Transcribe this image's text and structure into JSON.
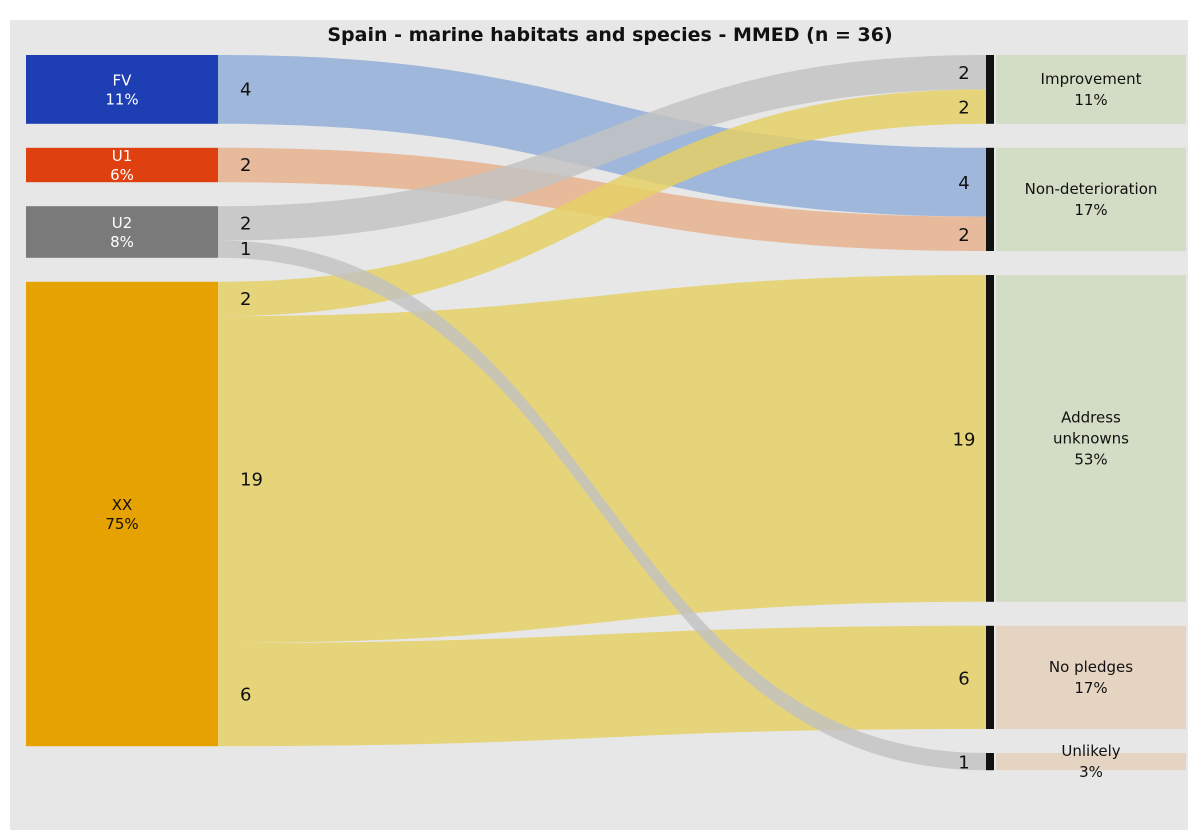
{
  "chart_data": {
    "type": "sankey",
    "title": "Spain - marine habitats and species - MMED (n = 36)",
    "total": 36,
    "sources": [
      {
        "id": "FV",
        "label": "FV",
        "pct": "11%",
        "value": 4,
        "color": "#1e3fb4",
        "text_color": "#ffffff"
      },
      {
        "id": "U1",
        "label": "U1",
        "pct": "6%",
        "value": 2,
        "color": "#de4010",
        "text_color": "#ffffff"
      },
      {
        "id": "U2",
        "label": "U2",
        "pct": "8%",
        "value": 3,
        "color": "#7a7a7a",
        "text_color": "#ffffff"
      },
      {
        "id": "XX",
        "label": "XX",
        "pct": "75%",
        "value": 27,
        "color": "#e6a200",
        "text_color": "#111111"
      }
    ],
    "targets": [
      {
        "id": "improvement",
        "label": [
          "Improvement"
        ],
        "pct": "11%",
        "value": 4,
        "color": "#d3dcc4"
      },
      {
        "id": "non-deterioration",
        "label": [
          "Non-deterioration"
        ],
        "pct": "17%",
        "value": 6,
        "color": "#d3dcc4"
      },
      {
        "id": "address-unknowns",
        "label": [
          "Address",
          "unknowns"
        ],
        "pct": "53%",
        "value": 19,
        "color": "#d3dcc4"
      },
      {
        "id": "no-pledges",
        "label": [
          "No pledges"
        ],
        "pct": "17%",
        "value": 6,
        "color": "#e6d4c2"
      },
      {
        "id": "unlikely",
        "label": [
          "Unlikely"
        ],
        "pct": "3%",
        "value": 1,
        "color": "#e6d4c2"
      }
    ],
    "flows": [
      {
        "source": "FV",
        "target": "non-deterioration",
        "value": 4,
        "color": "#8eacd7"
      },
      {
        "source": "U1",
        "target": "non-deterioration",
        "value": 2,
        "color": "#e6b08a"
      },
      {
        "source": "U2",
        "target": "improvement",
        "value": 2,
        "color": "#c2c2c2"
      },
      {
        "source": "U2",
        "target": "unlikely",
        "value": 1,
        "color": "#c2c2c2"
      },
      {
        "source": "XX",
        "target": "improvement",
        "value": 2,
        "color": "#e5d062"
      },
      {
        "source": "XX",
        "target": "address-unknowns",
        "value": 19,
        "color": "#e5d062"
      },
      {
        "source": "XX",
        "target": "no-pledges",
        "value": 6,
        "color": "#e5d062"
      }
    ]
  }
}
